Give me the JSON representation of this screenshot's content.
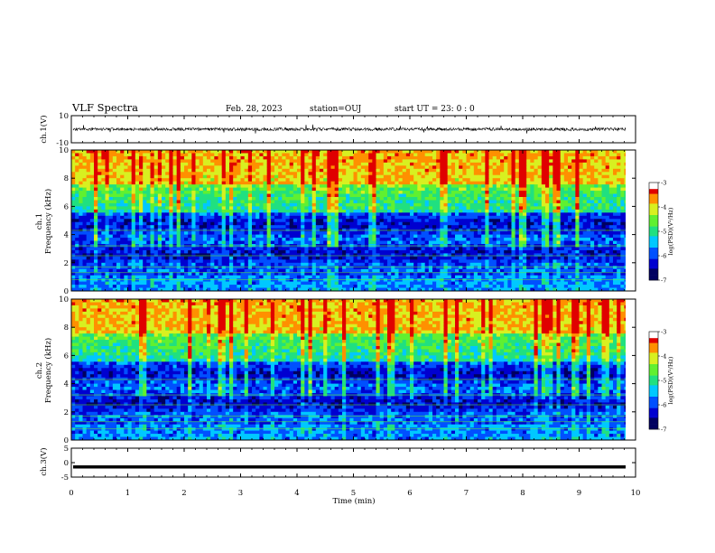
{
  "header": {
    "title": "VLF Spectra",
    "date": "Feb. 28, 2023",
    "station": "station=OUJ",
    "start": "start  UT =   23: 0   : 0"
  },
  "colors": {
    "spectrum": [
      "#000060",
      "#0000d0",
      "#0050ff",
      "#00c8ff",
      "#20e080",
      "#60f030",
      "#d8f020",
      "#ff9000",
      "#e00000",
      "#ffffff"
    ],
    "trace": "#000000"
  },
  "chart_data": [
    {
      "type": "line",
      "ylabel": "ch.1(V)",
      "ylim": [
        -10,
        10
      ],
      "yticks": [
        "10",
        "-10"
      ],
      "xlim": [
        0,
        10
      ],
      "series": [
        {
          "values": "noisy waveform centered near 0 V, amplitude about ±3 V"
        }
      ]
    },
    {
      "type": "heatmap",
      "ylabel_top": "ch.1",
      "ylabel": "Frequency  (kHz)",
      "ylim": [
        0,
        10
      ],
      "yticks": [
        "0",
        "2",
        "4",
        "6",
        "8",
        "10"
      ],
      "xlim": [
        0,
        10
      ],
      "colorbar": {
        "label": "log(PSD)(V²/Hz)",
        "ticks": [
          "-3",
          "-4",
          "-5",
          "-6",
          "-7"
        ],
        "range": [
          -7,
          -3
        ]
      }
    },
    {
      "type": "heatmap",
      "ylabel_top": "ch.2",
      "ylabel": "Frequency  (kHz)",
      "ylim": [
        0,
        10
      ],
      "yticks": [
        "0",
        "2",
        "4",
        "6",
        "8",
        "10"
      ],
      "xlim": [
        0,
        10
      ],
      "colorbar": {
        "label": "log(PSD)(V²/Hz)",
        "ticks": [
          "-3",
          "-4",
          "-5",
          "-6",
          "-7"
        ],
        "range": [
          -7,
          -3
        ]
      }
    },
    {
      "type": "line",
      "ylabel": "ch.3(V)",
      "ylim": [
        -5,
        5
      ],
      "yticks": [
        "5",
        "0",
        "-5"
      ],
      "xlim": [
        0,
        10
      ],
      "series": [
        {
          "values": "constant near -1.5 V"
        }
      ]
    }
  ],
  "xaxis": {
    "label": "Time  (min)",
    "ticks": [
      "0",
      "1",
      "2",
      "3",
      "4",
      "5",
      "6",
      "7",
      "8",
      "9",
      "10"
    ],
    "range": [
      0,
      10
    ]
  }
}
